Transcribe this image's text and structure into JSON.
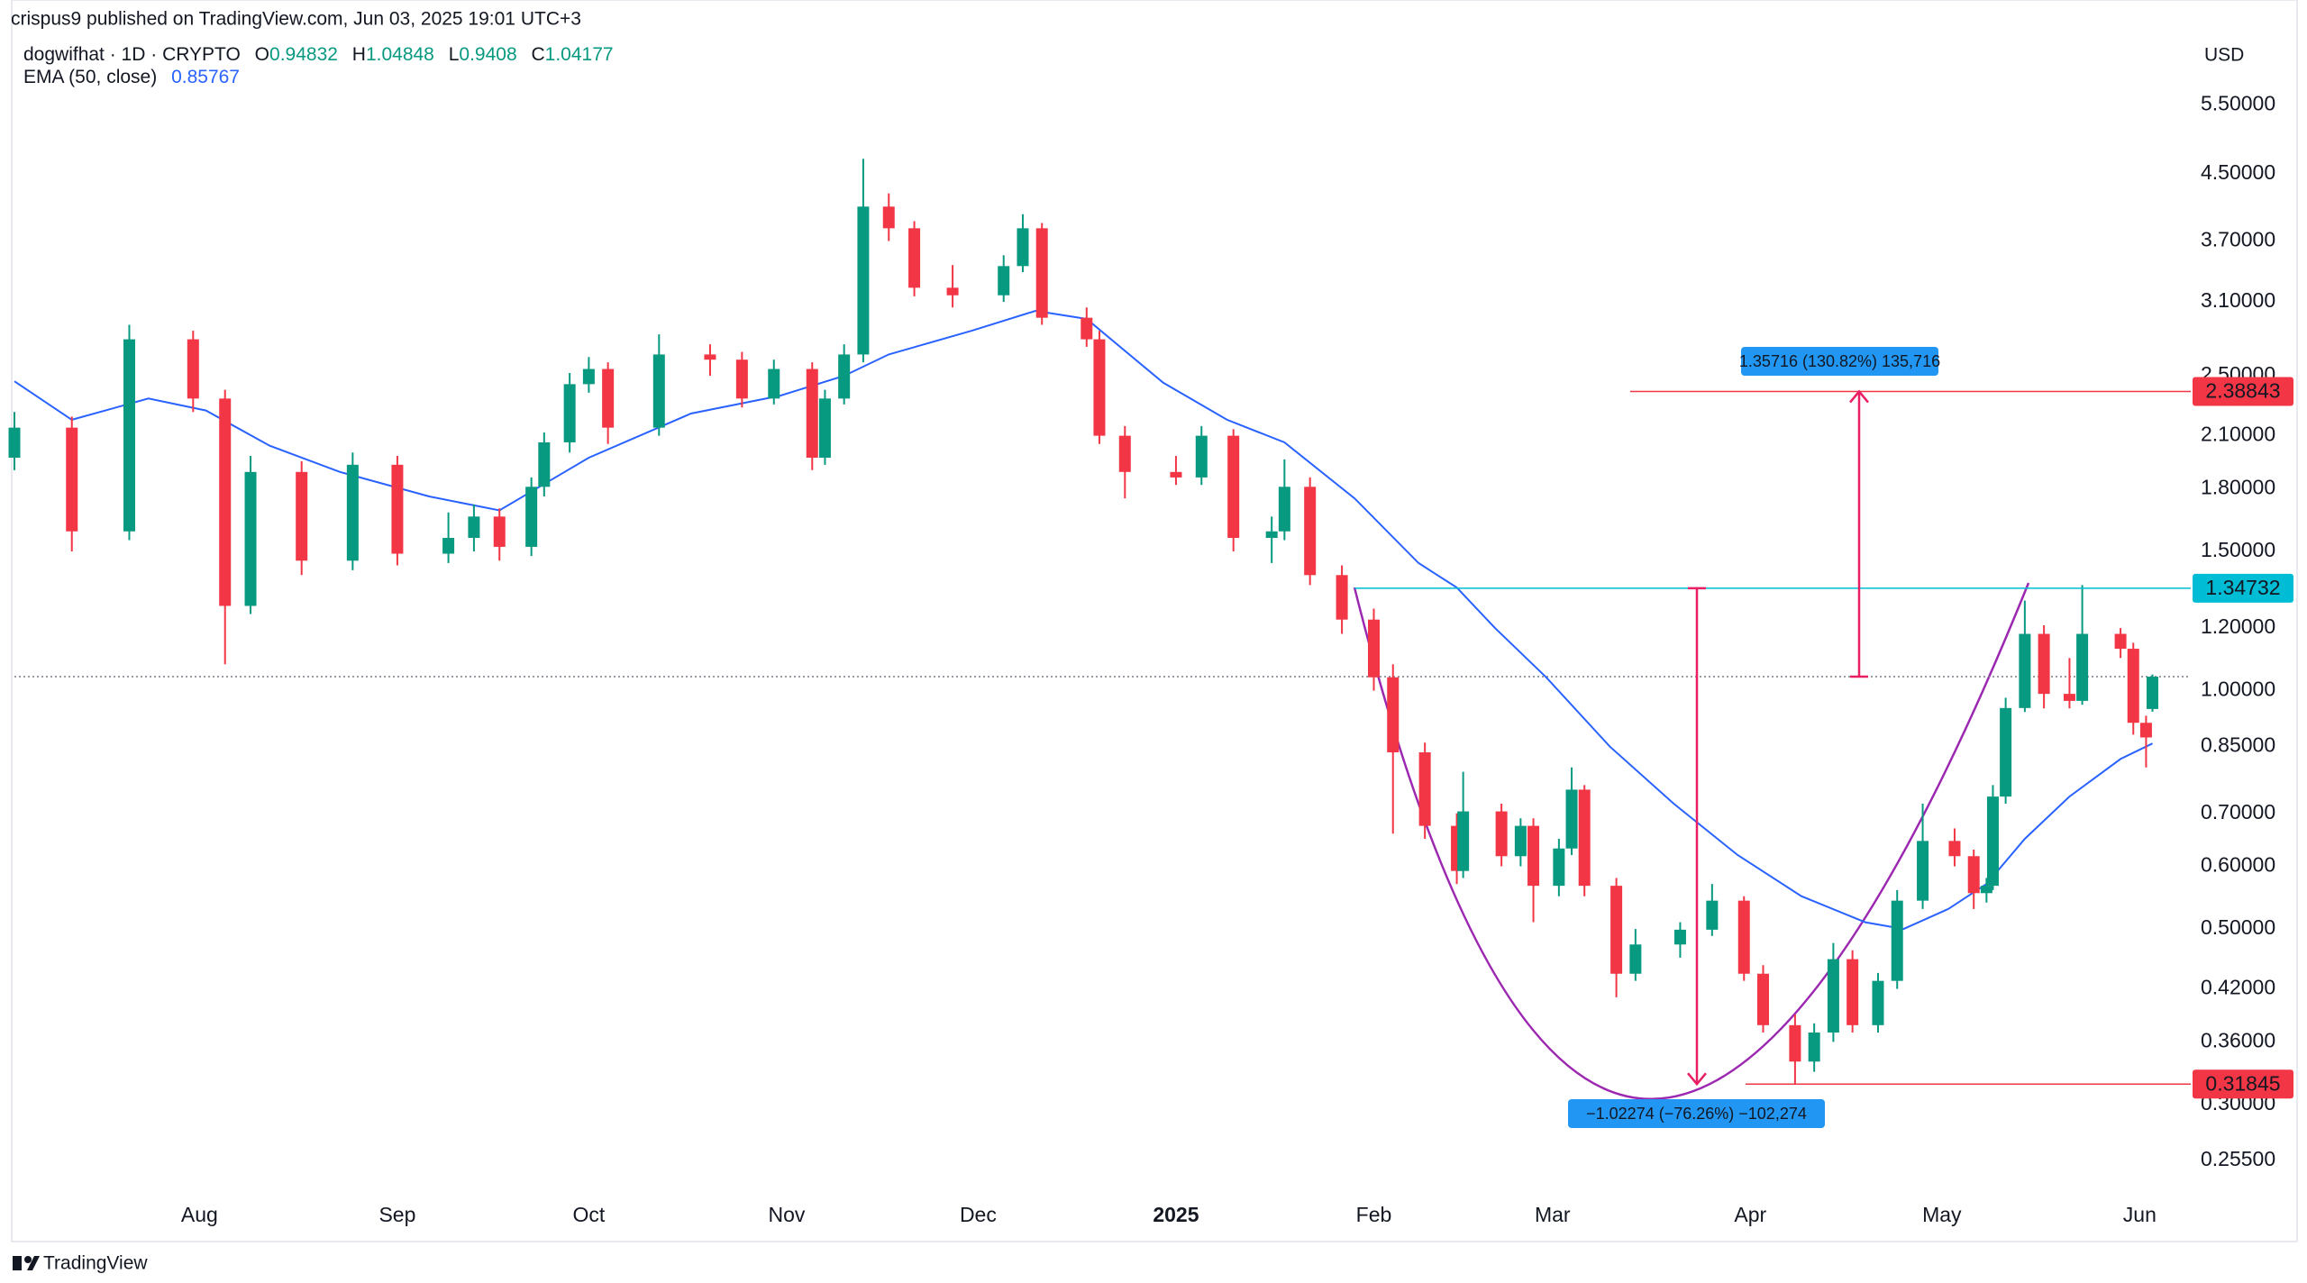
{
  "header": "crispus9 published on TradingView.com, Jun 03, 2025 19:01 UTC+3",
  "brand": "TradingView",
  "chart_data": {
    "type": "candlestick",
    "symbol": "dogwifhat · 1D · CRYPTO",
    "ohlc_labels": [
      "O",
      "H",
      "L",
      "C"
    ],
    "currency": "USD",
    "log_y": true,
    "grid": false,
    "up_color": "#089981",
    "down_color": "#f23645",
    "xlim": [
      0,
      341
    ],
    "ylim": [
      0.203,
      6.7
    ],
    "xticks": [
      {
        "value": 29,
        "label": "Aug"
      },
      {
        "value": 60,
        "label": "Sep"
      },
      {
        "value": 90,
        "label": "Oct"
      },
      {
        "value": 121,
        "label": "Nov"
      },
      {
        "value": 151,
        "label": "Dec"
      },
      {
        "value": 182,
        "label": "2025"
      },
      {
        "value": 213,
        "label": "Feb"
      },
      {
        "value": 241,
        "label": "Mar"
      },
      {
        "value": 272,
        "label": "Apr"
      },
      {
        "value": 302,
        "label": "May"
      },
      {
        "value": 333,
        "label": "Jun"
      }
    ],
    "yticks": [
      {
        "value": 5.5,
        "label": "5.50000"
      },
      {
        "value": 4.5,
        "label": "4.50000"
      },
      {
        "value": 3.7,
        "label": "3.70000"
      },
      {
        "value": 3.1,
        "label": "3.10000"
      },
      {
        "value": 2.5,
        "label": "2.50000"
      },
      {
        "value": 2.1,
        "label": "2.10000"
      },
      {
        "value": 1.8,
        "label": "1.80000"
      },
      {
        "value": 1.5,
        "label": "1.50000"
      },
      {
        "value": 1.2,
        "label": "1.20000"
      },
      {
        "value": 1,
        "label": "1.00000"
      },
      {
        "value": 0.85,
        "label": "0.85000"
      },
      {
        "value": 0.7,
        "label": "0.70000"
      },
      {
        "value": 0.6,
        "label": "0.60000"
      },
      {
        "value": 0.5,
        "label": "0.50000"
      },
      {
        "value": 0.42,
        "label": "0.42000"
      },
      {
        "value": 0.36,
        "label": "0.36000"
      },
      {
        "value": 0.3,
        "label": "0.30000"
      },
      {
        "value": 0.255,
        "label": "0.25500"
      }
    ],
    "x": [
      0,
      9,
      18,
      28,
      33,
      37,
      45,
      53,
      60,
      68,
      72,
      76,
      81,
      83,
      87,
      90,
      93,
      101,
      109,
      114,
      119,
      125,
      127,
      130,
      133,
      137,
      141,
      147,
      155,
      158,
      161,
      168,
      170,
      174,
      182,
      186,
      191,
      197,
      199,
      203,
      208,
      213,
      216,
      221,
      226,
      227,
      233,
      236,
      238,
      242,
      244,
      246,
      251,
      254,
      261,
      266,
      271,
      274,
      279,
      282,
      285,
      288,
      292,
      295,
      299,
      304,
      307,
      309,
      310,
      312,
      315,
      318,
      322,
      324,
      330,
      332,
      334,
      335
    ],
    "open": [
      1.97,
      2.15,
      1.59,
      2.78,
      2.34,
      1.28,
      1.89,
      1.46,
      1.93,
      1.49,
      1.56,
      1.66,
      1.52,
      1.81,
      2.06,
      2.44,
      2.55,
      2.15,
      2.66,
      2.62,
      2.34,
      2.55,
      1.97,
      2.34,
      2.66,
      4.09,
      3.84,
      3.23,
      3.16,
      3.44,
      3.84,
      2.96,
      2.78,
      2.1,
      1.89,
      1.86,
      2.1,
      1.56,
      1.59,
      1.81,
      1.4,
      1.23,
      1.04,
      0.836,
      0.675,
      0.592,
      0.704,
      0.618,
      0.675,
      0.567,
      0.632,
      0.75,
      0.567,
      0.439,
      0.478,
      0.499,
      0.543,
      0.439,
      0.378,
      0.34,
      0.37,
      0.458,
      0.378,
      0.43,
      0.543,
      0.646,
      0.618,
      0.555,
      0.567,
      0.735,
      0.951,
      1.18,
      0.991,
      0.971,
      1.18,
      1.13,
      0.911,
      0.94832
    ],
    "high": [
      2.25,
      2.22,
      2.9,
      2.85,
      2.4,
      1.98,
      1.95,
      2.0,
      1.98,
      1.68,
      1.72,
      1.7,
      1.86,
      2.12,
      2.52,
      2.64,
      2.6,
      2.82,
      2.74,
      2.68,
      2.62,
      2.6,
      2.4,
      2.74,
      4.7,
      4.25,
      3.92,
      3.45,
      3.55,
      4.0,
      3.9,
      3.05,
      2.85,
      2.16,
      1.98,
      2.16,
      2.14,
      1.66,
      1.96,
      1.86,
      1.44,
      1.27,
      1.08,
      0.86,
      0.7,
      0.79,
      0.72,
      0.69,
      0.69,
      0.65,
      0.8,
      0.76,
      0.58,
      0.5,
      0.51,
      0.57,
      0.55,
      0.45,
      0.39,
      0.38,
      0.48,
      0.47,
      0.44,
      0.56,
      0.72,
      0.67,
      0.63,
      0.58,
      0.76,
      0.98,
      1.3,
      1.21,
      1.1,
      1.36,
      1.2,
      1.15,
      0.93,
      1.04848
    ],
    "low": [
      1.9,
      1.5,
      1.55,
      2.25,
      1.08,
      1.25,
      1.4,
      1.42,
      1.44,
      1.45,
      1.5,
      1.46,
      1.48,
      1.76,
      2.0,
      2.38,
      2.05,
      2.1,
      2.5,
      2.28,
      2.3,
      1.9,
      1.93,
      2.3,
      2.6,
      3.7,
      3.15,
      3.05,
      3.1,
      3.38,
      2.9,
      2.72,
      2.05,
      1.75,
      1.82,
      1.82,
      1.5,
      1.45,
      1.55,
      1.36,
      1.18,
      1.0,
      0.66,
      0.65,
      0.57,
      0.58,
      0.6,
      0.6,
      0.51,
      0.55,
      0.62,
      0.55,
      0.41,
      0.43,
      0.46,
      0.49,
      0.43,
      0.37,
      0.31845,
      0.33,
      0.36,
      0.37,
      0.37,
      0.42,
      0.53,
      0.6,
      0.53,
      0.54,
      0.56,
      0.72,
      0.94,
      0.95,
      0.95,
      0.96,
      1.1,
      0.88,
      0.8,
      0.9408
    ],
    "close": [
      2.15,
      1.59,
      2.78,
      2.34,
      1.28,
      1.89,
      1.46,
      1.93,
      1.49,
      1.56,
      1.66,
      1.52,
      1.81,
      2.06,
      2.44,
      2.55,
      2.15,
      2.66,
      2.62,
      2.34,
      2.55,
      1.97,
      2.34,
      2.66,
      4.09,
      3.84,
      3.23,
      3.16,
      3.44,
      3.84,
      2.96,
      2.78,
      2.1,
      1.89,
      1.86,
      2.1,
      1.56,
      1.59,
      1.81,
      1.4,
      1.23,
      1.04,
      0.836,
      0.675,
      0.592,
      0.704,
      0.618,
      0.675,
      0.567,
      0.632,
      0.75,
      0.567,
      0.439,
      0.478,
      0.499,
      0.543,
      0.439,
      0.378,
      0.34,
      0.37,
      0.458,
      0.378,
      0.43,
      0.543,
      0.646,
      0.618,
      0.555,
      0.567,
      0.735,
      0.951,
      1.18,
      0.991,
      0.971,
      1.18,
      1.13,
      0.911,
      0.873,
      1.04177
    ],
    "ema": {
      "name": "EMA (50, close)",
      "color": "#2962ff",
      "x": [
        0,
        9,
        21,
        30,
        40,
        51,
        65,
        76,
        90,
        106,
        120,
        130,
        137,
        150,
        160,
        168,
        180,
        190,
        199,
        210,
        220,
        226,
        232,
        240,
        250,
        260,
        270,
        280,
        290,
        296,
        303,
        309,
        315,
        322,
        330,
        335
      ],
      "values": [
        2.46,
        2.2,
        2.34,
        2.26,
        2.04,
        1.89,
        1.76,
        1.69,
        1.97,
        2.24,
        2.36,
        2.5,
        2.66,
        2.85,
        3.02,
        2.95,
        2.45,
        2.2,
        2.06,
        1.75,
        1.45,
        1.35,
        1.2,
        1.04,
        0.85,
        0.72,
        0.62,
        0.55,
        0.51,
        0.5,
        0.53,
        0.57,
        0.65,
        0.735,
        0.82,
        0.85767
      ]
    },
    "levels": [
      {
        "value": 2.38843,
        "color": "#f23645"
      },
      {
        "value": 1.34732,
        "color": "#00bcd4"
      },
      {
        "value": 0.31845,
        "color": "#f23645"
      }
    ],
    "measures": [
      "1.35716 (130.82%) 135,716",
      "−1.02274 (−76.26%) −102,274"
    ]
  }
}
